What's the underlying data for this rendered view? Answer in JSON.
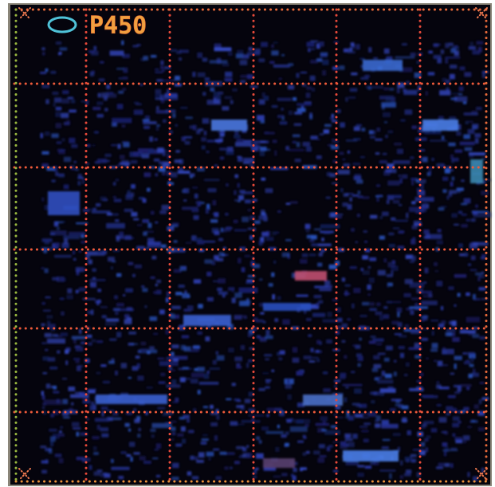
{
  "label": "P450"
}
